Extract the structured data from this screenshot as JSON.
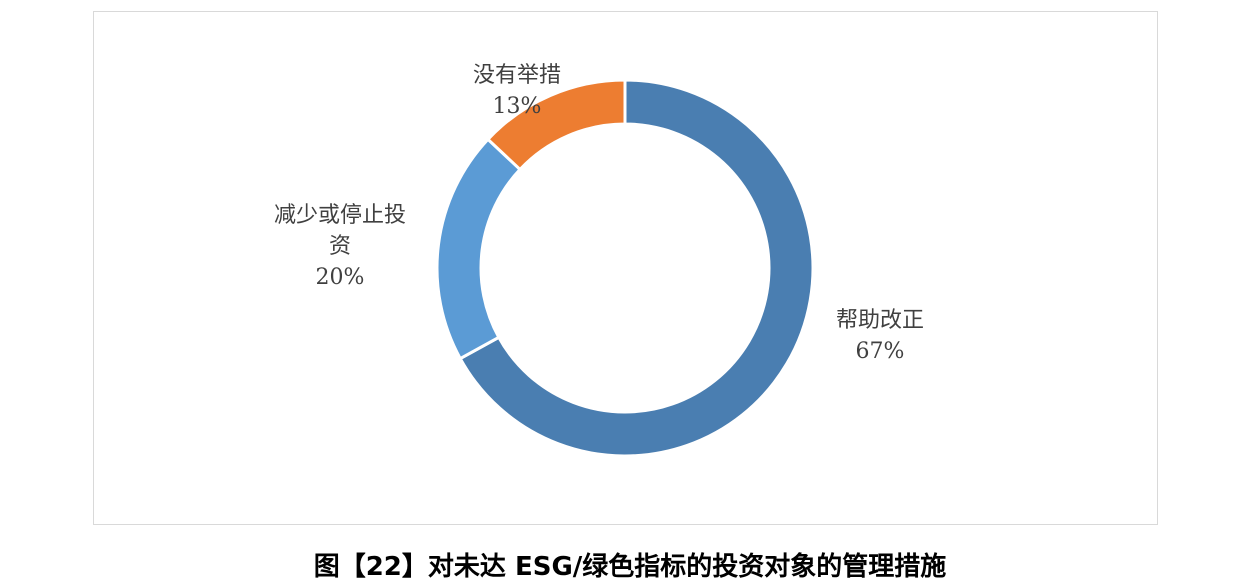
{
  "chart_data": {
    "type": "donut",
    "categories": [
      "帮助改正",
      "减少或停止投资",
      "没有举措"
    ],
    "values": [
      67,
      20,
      13
    ],
    "value_labels": [
      "67%",
      "20%",
      "13%"
    ],
    "colors": [
      "#4a7eb1",
      "#5b9bd5",
      "#ed7d31"
    ],
    "caption": "图【22】对未达 ESG/绿色指标的投资对象的管理措施"
  }
}
